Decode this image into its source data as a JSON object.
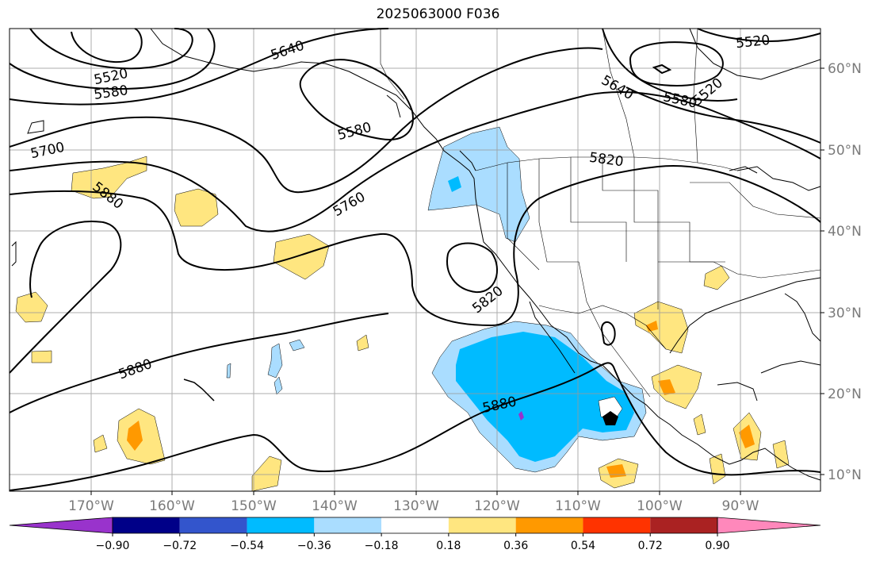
{
  "title": "2025063000 F036",
  "latitude_labels": [
    "60°N",
    "50°N",
    "40°N",
    "30°N",
    "20°N",
    "10°N"
  ],
  "longitude_labels": [
    "170°W",
    "160°W",
    "150°W",
    "140°W",
    "130°W",
    "120°W",
    "110°W",
    "100°W",
    "90°W"
  ],
  "contour_labels": [
    "5640",
    "5520",
    "5580",
    "5700",
    "5580",
    "5880",
    "5760",
    "5820",
    "5880",
    "5820",
    "5880",
    "5640",
    "5580",
    "5520",
    "5520"
  ],
  "colorbar": {
    "tick_labels": [
      "−0.90",
      "−0.72",
      "−0.54",
      "−0.36",
      "−0.18",
      "0.18",
      "0.36",
      "0.54",
      "0.72",
      "0.90"
    ],
    "colors": [
      "#9933cc",
      "#000088",
      "#3355cc",
      "#00bbff",
      "#aaddff",
      "#ffffff",
      "#ffe680",
      "#ff9900",
      "#ff3300",
      "#aa2222",
      "#ff88bb"
    ]
  }
}
